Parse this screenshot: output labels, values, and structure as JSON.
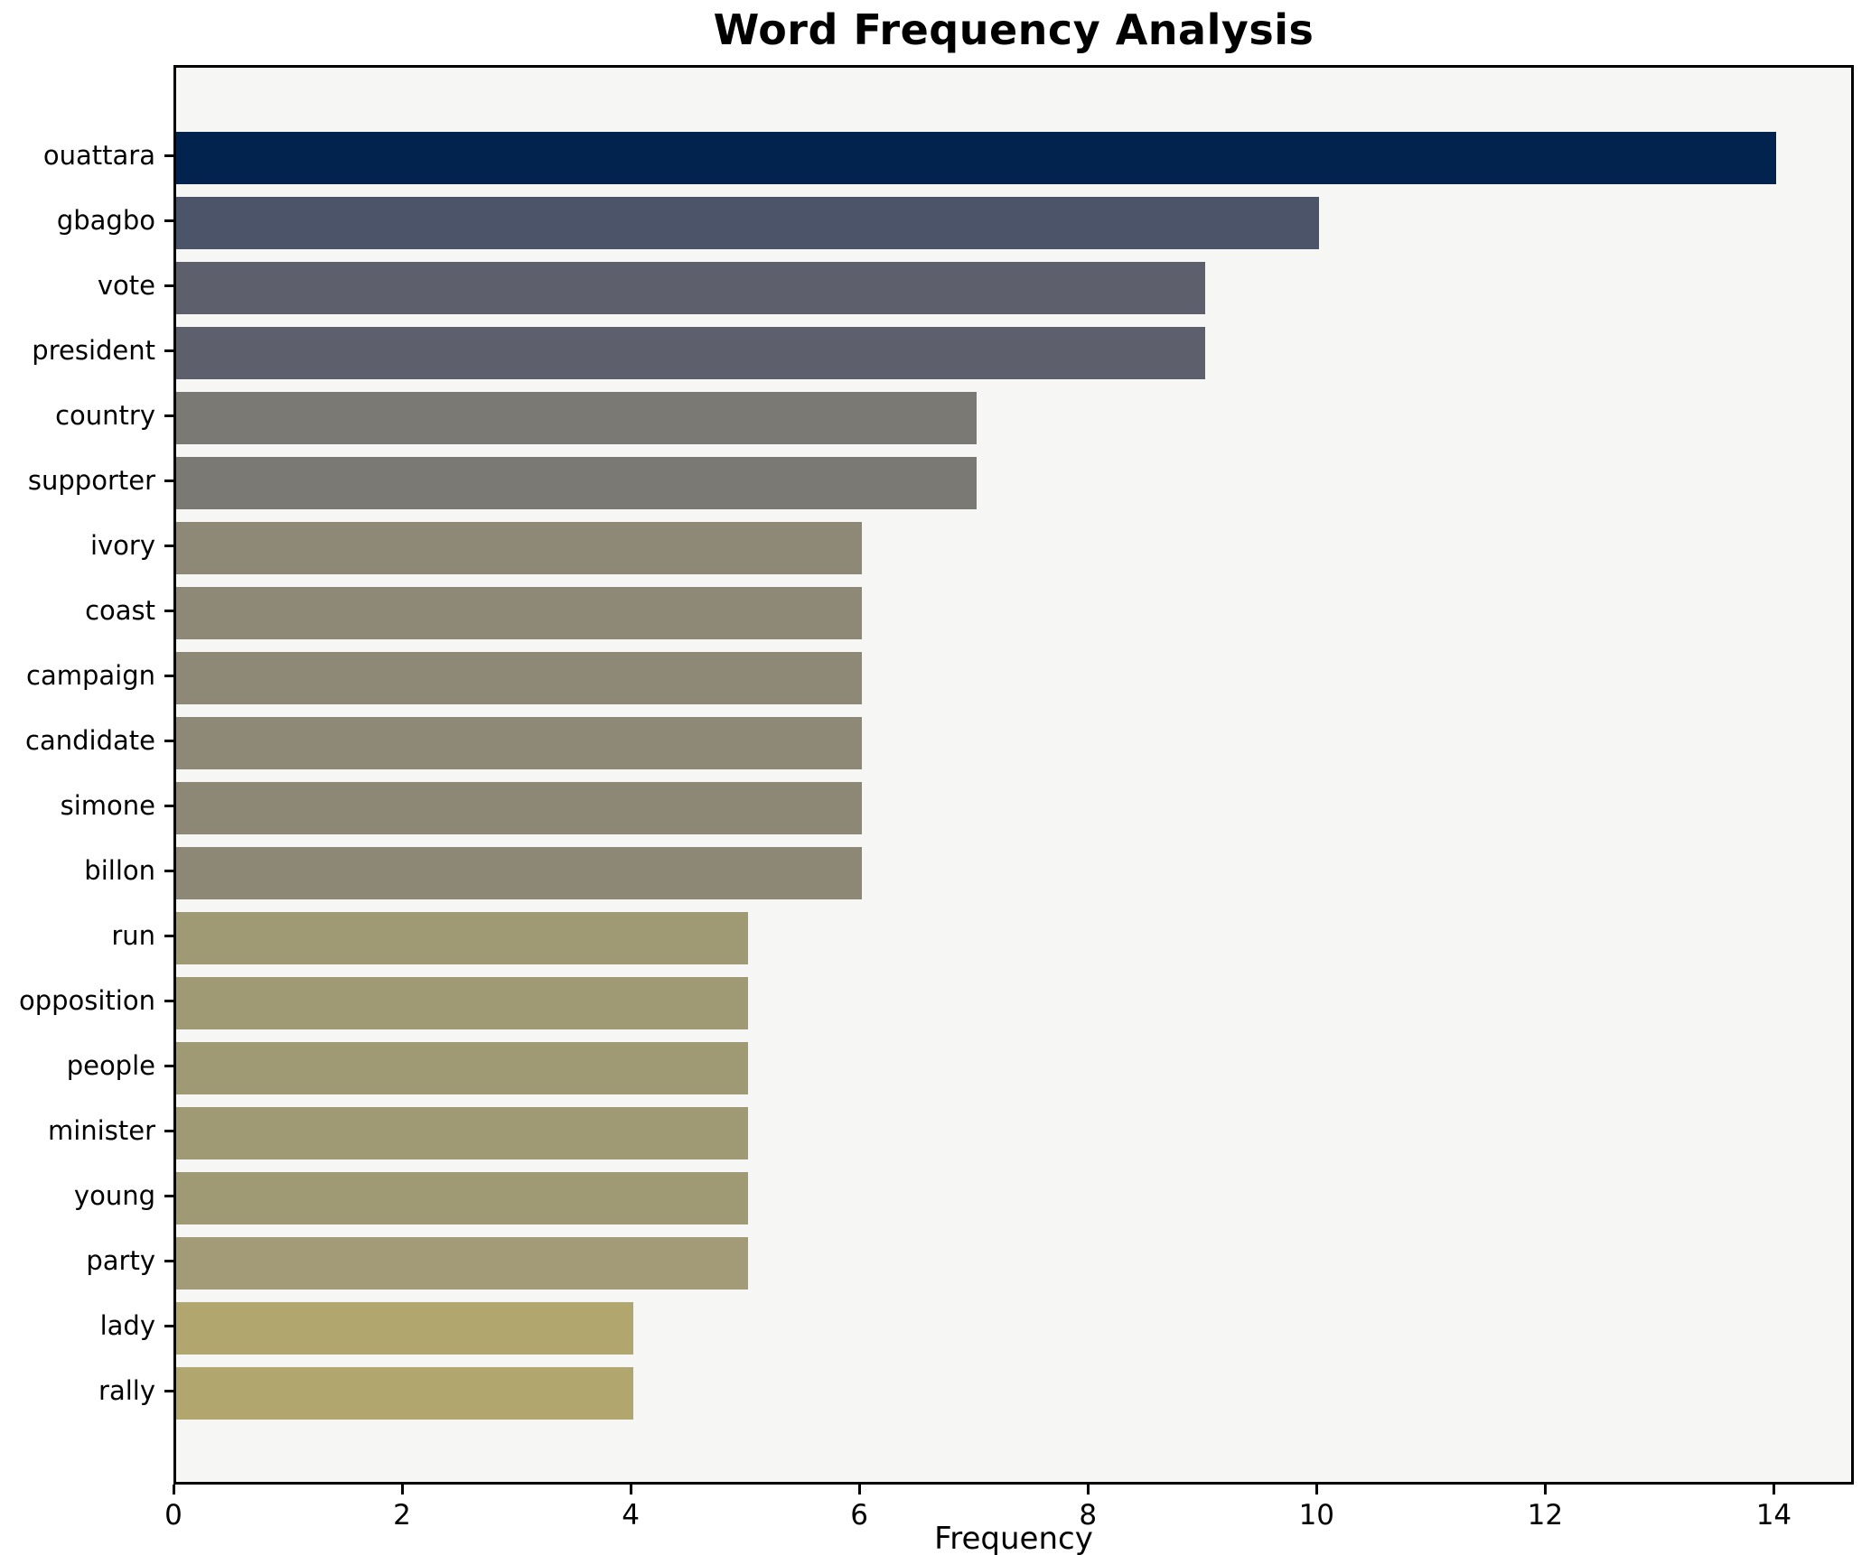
{
  "title": "Word Frequency Analysis",
  "chart_data": {
    "type": "bar",
    "orientation": "horizontal",
    "title": "Word Frequency Analysis",
    "xlabel": "Frequency",
    "ylabel": "",
    "categories": [
      "ouattara",
      "gbagbo",
      "vote",
      "president",
      "country",
      "supporter",
      "ivory",
      "coast",
      "campaign",
      "candidate",
      "simone",
      "billon",
      "run",
      "opposition",
      "people",
      "minister",
      "young",
      "party",
      "lady",
      "rally"
    ],
    "values": [
      14,
      10,
      9,
      9,
      7,
      7,
      6,
      6,
      6,
      6,
      6,
      6,
      5,
      5,
      5,
      5,
      5,
      5,
      4,
      4
    ],
    "bar_colors": [
      "#02234d",
      "#4c5469",
      "#5d606c",
      "#5d606c",
      "#7a7974",
      "#7a7974",
      "#8e8977",
      "#8e8977",
      "#8e8977",
      "#8e8977",
      "#8d8876",
      "#8d8876",
      "#a09a74",
      "#a09a74",
      "#a09a74",
      "#a09a74",
      "#a09a74",
      "#a39b77",
      "#b0a66e",
      "#b0a66e"
    ],
    "xlim": [
      0,
      14.7
    ],
    "xticks": [
      0,
      2,
      4,
      6,
      8,
      10,
      12,
      14
    ],
    "grid": false,
    "legend_position": "none",
    "plot_background": "#f6f6f4",
    "figure_background": "#ffffff",
    "spine_color": "#000000"
  }
}
